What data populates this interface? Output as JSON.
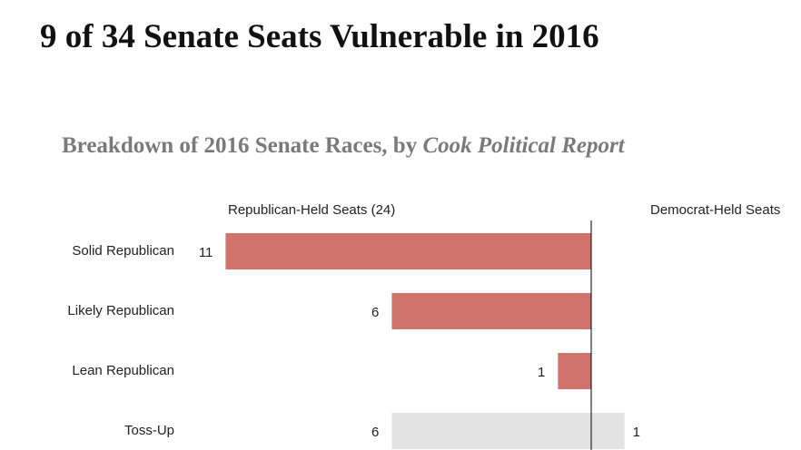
{
  "chart_data": {
    "type": "butterfly-bar",
    "title": "9 of 34 Senate Seats Vulnerable in 2016",
    "subtitle": "Breakdown of 2016 Senate Races, by",
    "subtitle_source": "Cook Political Report",
    "categories": [
      "Solid Republican",
      "Likely Republican",
      "Lean Republican",
      "Toss-Up"
    ],
    "series": [
      {
        "name": "Republican-Held Seats (24)",
        "side": "left",
        "colors": [
          "#d0736b",
          "#d0736b",
          "#d0736b",
          "#e3e3e3"
        ],
        "values": [
          11,
          6,
          1,
          6
        ]
      },
      {
        "name": "Democrat-Held Seats",
        "side": "right",
        "colors": [
          "#6b8ed0",
          "#6b8ed0",
          "#6b8ed0",
          "#e3e3e3"
        ],
        "values": [
          null,
          null,
          null,
          1
        ]
      }
    ]
  }
}
